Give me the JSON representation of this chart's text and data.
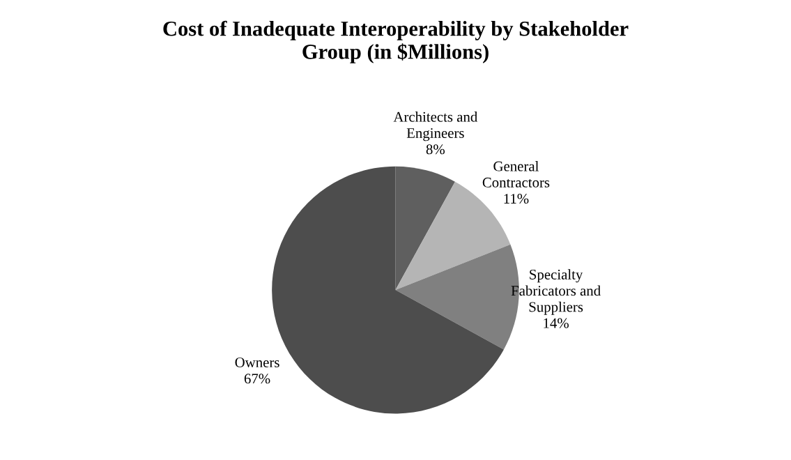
{
  "chart_data": {
    "type": "pie",
    "title": "Cost of Inadequate Interoperability by Stakeholder\nGroup (in $Millions)",
    "categories": [
      "Architects and\nEngineers",
      "General\nContractors",
      "Specialty\nFabricators and\nSuppliers",
      "Owners"
    ],
    "values": [
      8,
      11,
      14,
      67
    ],
    "value_labels": [
      "8%",
      "11%",
      "14%",
      "67%"
    ],
    "colors": [
      "#5f5f5f",
      "#b5b5b5",
      "#808080",
      "#4d4d4d"
    ]
  }
}
